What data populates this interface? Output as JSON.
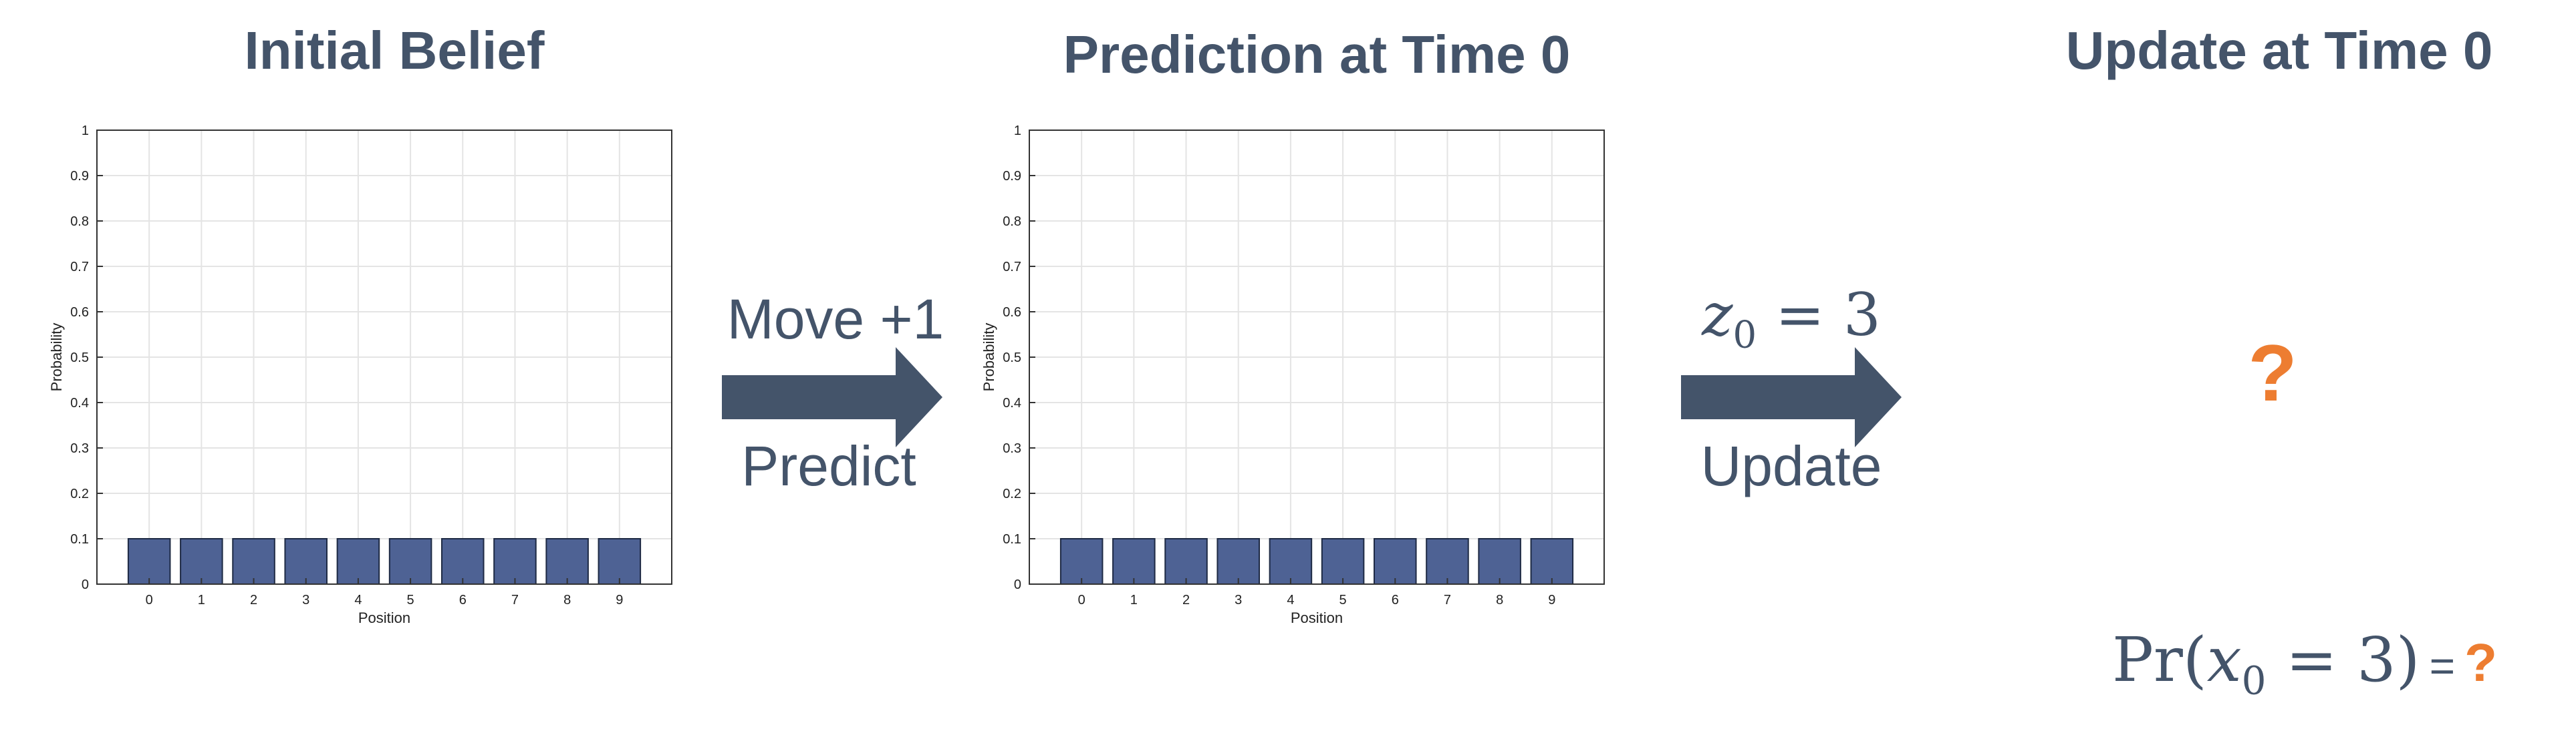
{
  "titles": {
    "left": "Initial Belief",
    "middle": "Prediction at Time 0",
    "right": "Update at Time 0"
  },
  "arrows": {
    "predict": {
      "top": "Move +1",
      "bottom": "Predict"
    },
    "update": {
      "top_var": "z",
      "top_sub": "0",
      "top_rest": " = 3",
      "bottom": "Update"
    }
  },
  "colors": {
    "bar": "#4e6294",
    "text": "#44546a",
    "accent": "#ed7d31",
    "grid": "#e4e4e4"
  },
  "unknown": {
    "symbol": "?"
  },
  "formula": {
    "pr": "Pr(",
    "var": "x",
    "sub": "0",
    "rest": " = 3)",
    "eq": "=",
    "value": "?"
  },
  "chart_data": [
    {
      "type": "bar",
      "categories": [
        "0",
        "1",
        "2",
        "3",
        "4",
        "5",
        "6",
        "7",
        "8",
        "9"
      ],
      "values": [
        0.1,
        0.1,
        0.1,
        0.1,
        0.1,
        0.1,
        0.1,
        0.1,
        0.1,
        0.1
      ],
      "xlabel": "Position",
      "ylabel": "Probability",
      "ylim": [
        0,
        1
      ],
      "yticks": [
        "0",
        "0.1",
        "0.2",
        "0.3",
        "0.4",
        "0.5",
        "0.6",
        "0.7",
        "0.8",
        "0.9",
        "1"
      ],
      "grid": true
    },
    {
      "type": "bar",
      "categories": [
        "0",
        "1",
        "2",
        "3",
        "4",
        "5",
        "6",
        "7",
        "8",
        "9"
      ],
      "values": [
        0.1,
        0.1,
        0.1,
        0.1,
        0.1,
        0.1,
        0.1,
        0.1,
        0.1,
        0.1
      ],
      "xlabel": "Position",
      "ylabel": "Probability",
      "ylim": [
        0,
        1
      ],
      "yticks": [
        "0",
        "0.1",
        "0.2",
        "0.3",
        "0.4",
        "0.5",
        "0.6",
        "0.7",
        "0.8",
        "0.9",
        "1"
      ],
      "grid": true
    }
  ]
}
